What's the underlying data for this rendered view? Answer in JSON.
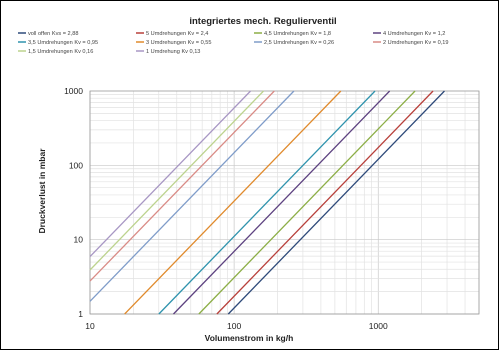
{
  "chart_data": {
    "type": "line",
    "title": "integriertes mech. Regulierventil",
    "xlabel": "Volumenstrom in kg/h",
    "ylabel": "Druckverlust in mbar",
    "xscale": "log",
    "yscale": "log",
    "xlim": [
      10,
      5000
    ],
    "ylim": [
      1,
      1000
    ],
    "x_ticks": [
      "10",
      "100",
      "1000"
    ],
    "y_ticks": [
      "1",
      "10",
      "100",
      "1000"
    ],
    "grid": true,
    "legend_position": "top",
    "series": [
      {
        "name": "voll offen Kvs = 2,88",
        "kv": 2.88,
        "color": "#2e4a7a"
      },
      {
        "name": "5 Umdrehungen Kv = 2,4",
        "kv": 2.4,
        "color": "#b8403b"
      },
      {
        "name": "4,5 Umdrehungen Kv = 1,8",
        "kv": 1.8,
        "color": "#8cae46"
      },
      {
        "name": "4 Umdrehungen Kv = 1,2",
        "kv": 1.2,
        "color": "#5d4280"
      },
      {
        "name": "3,5 Umdrehungen Kv = 0,95",
        "kv": 0.95,
        "color": "#2f93ad"
      },
      {
        "name": "3 Umdrehungen Kv = 0,55",
        "kv": 0.55,
        "color": "#e08a2c"
      },
      {
        "name": "2,5 Umdrehungen Kv = 0,26",
        "kv": 0.26,
        "color": "#7f9cc9"
      },
      {
        "name": "2 Umdrehungen Kv = 0,19",
        "kv": 0.19,
        "color": "#d98b86"
      },
      {
        "name": "1,5 Umdrehungen Kv 0,16",
        "kv": 0.16,
        "color": "#bcd38e"
      },
      {
        "name": "1 Umdrehung Kv 0,13",
        "kv": 0.13,
        "color": "#a897c4"
      }
    ]
  }
}
